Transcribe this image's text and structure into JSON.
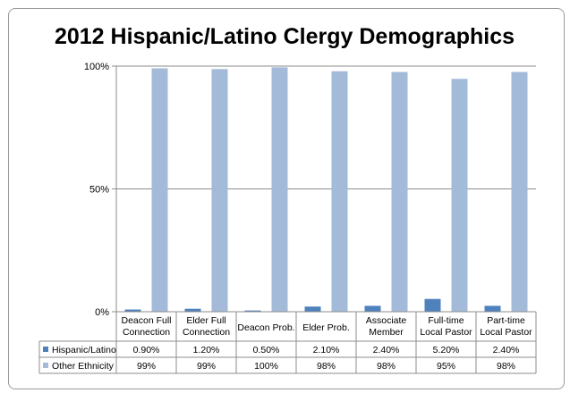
{
  "chart_data": {
    "type": "bar",
    "title": "2012 Hispanic/Latino Clergy Demographics",
    "categories": [
      [
        "Deacon Full",
        "Connection"
      ],
      [
        "Elder Full",
        "Connection"
      ],
      [
        "Deacon Prob."
      ],
      [
        "Elder Prob."
      ],
      [
        "Associate",
        "Member"
      ],
      [
        "Full-time",
        "Local Pastor"
      ],
      [
        "Part-time",
        "Local Pastor"
      ]
    ],
    "ylim": [
      0,
      100
    ],
    "yticks": [
      0,
      50,
      100
    ],
    "ytick_labels": [
      "0%",
      "50%",
      "100%"
    ],
    "grid": true,
    "legend": "data-table-left",
    "series": [
      {
        "name": "Hispanic/Latino",
        "color": "#4f81bd",
        "values": [
          0.9,
          1.2,
          0.5,
          2.1,
          2.4,
          5.2,
          2.4
        ],
        "labels": [
          "0.90%",
          "1.20%",
          "0.50%",
          "2.10%",
          "2.40%",
          "5.20%",
          "2.40%"
        ]
      },
      {
        "name": "Other Ethnicity",
        "color": "#a4bad9",
        "values": [
          99.1,
          98.8,
          99.5,
          97.9,
          97.6,
          94.8,
          97.6
        ],
        "labels": [
          "99%",
          "99%",
          "100%",
          "98%",
          "98%",
          "95%",
          "98%"
        ]
      }
    ]
  }
}
